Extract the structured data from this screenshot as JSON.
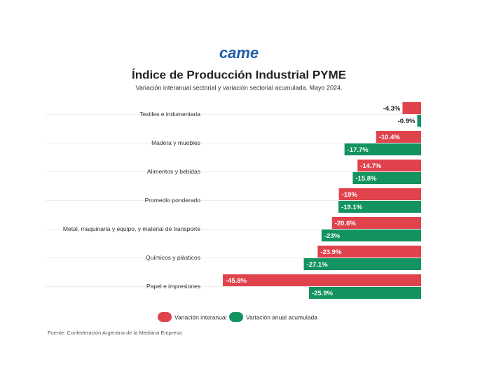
{
  "logo": "came",
  "chart_data": {
    "type": "hbar",
    "title": "Índice de Producción Industrial PYME",
    "subtitle": "Variación interanual sectorial y variación sectorial acumulada. Mayo 2024.",
    "source": "Fuente: Confederación Argentina de la Mediana Empresa",
    "categories": [
      "Textiles e indumentaria",
      "Madera y muebles",
      "Alimentos y bebidas",
      "Promedio ponderado",
      "Metal, maquinaria y equipo, y material de transporte",
      "Químicos y plásticos",
      "Papel e impresiones"
    ],
    "series": [
      {
        "name": "Variación interanual",
        "color": "#e0434c",
        "values": [
          -4.3,
          -10.4,
          -14.7,
          -19,
          -20.6,
          -23.9,
          -45.8
        ],
        "value_labels": [
          "-4.3%",
          "-10.4%",
          "-14.7%",
          "-19%",
          "-20.6%",
          "-23.9%",
          "-45.8%"
        ]
      },
      {
        "name": "Variación anual acumulada",
        "color": "#12935f",
        "values": [
          -0.9,
          -17.7,
          -15.8,
          -19.1,
          -23,
          -27.1,
          -25.9
        ],
        "value_labels": [
          "-0.9%",
          "-17.7%",
          "-15.8%",
          "-19.1%",
          "-23%",
          "-27.1%",
          "-25.9%"
        ]
      }
    ],
    "legend": "bottom"
  }
}
